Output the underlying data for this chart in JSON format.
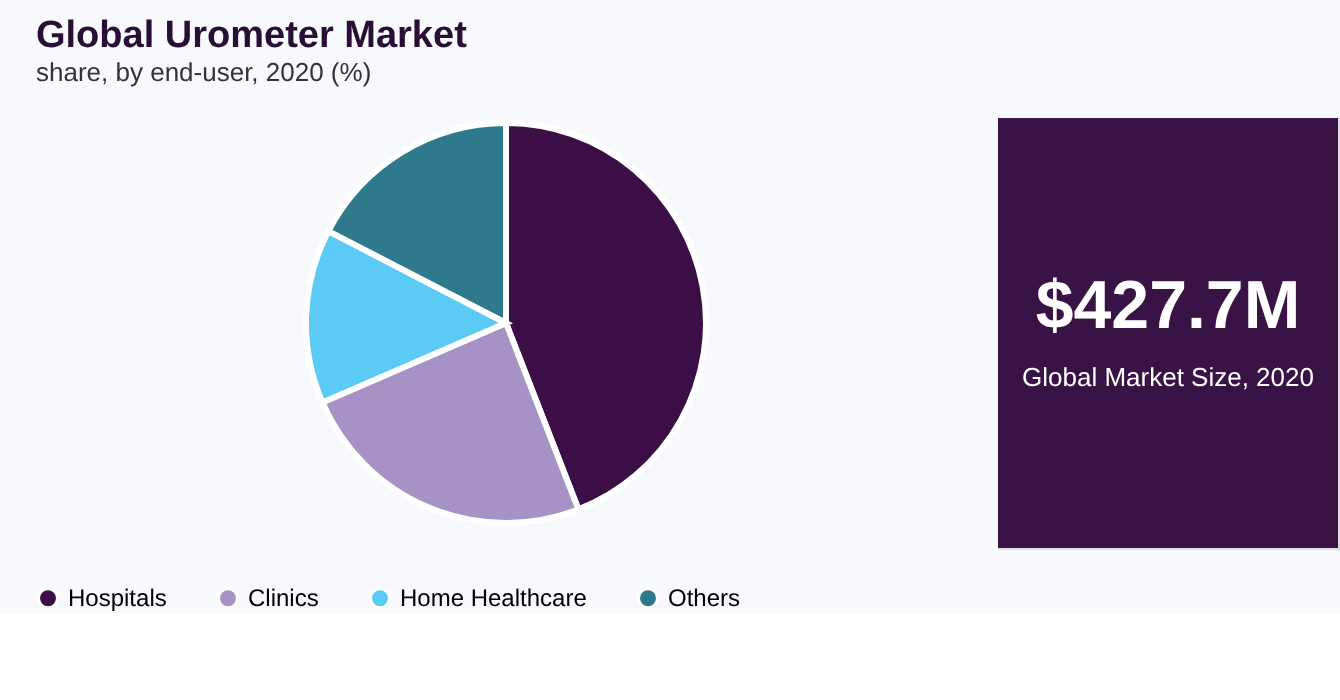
{
  "chart_data": {
    "type": "pie",
    "title": "Global Urometer Market",
    "subtitle": "share, by end-user, 2020 (%)",
    "categories": [
      "Hospitals",
      "Clinics",
      "Home Healthcare",
      "Others"
    ],
    "values": [
      44.1,
      24.4,
      14.1,
      17.4
    ],
    "colors": [
      "#3b0f45",
      "#a692c4",
      "#5bcaf4",
      "#2e7a8c"
    ],
    "legend": "bottom",
    "annotations": [
      "$427.7M",
      "Global Market Size, 2020"
    ]
  }
}
